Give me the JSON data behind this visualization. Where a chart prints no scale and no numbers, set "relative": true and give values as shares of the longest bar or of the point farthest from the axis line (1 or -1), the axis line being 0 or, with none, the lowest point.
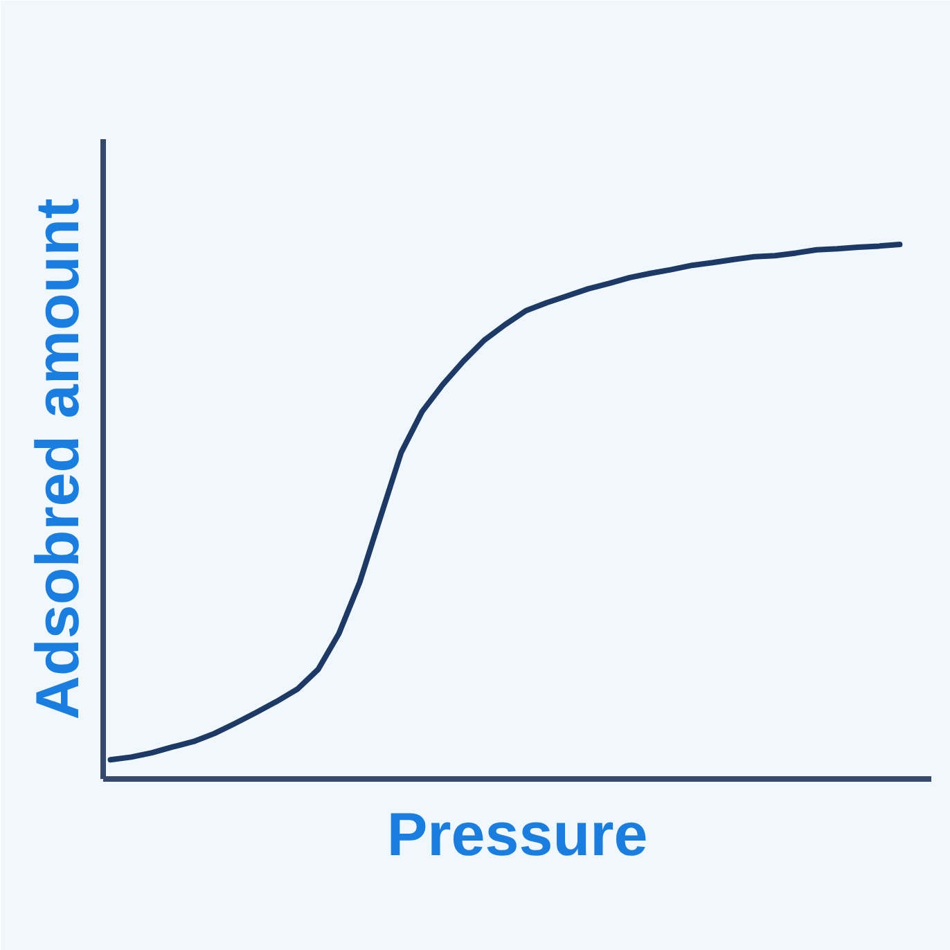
{
  "chart_data": {
    "type": "line",
    "xlabel": "Pressure",
    "ylabel": "Adsobred amount",
    "relative": true,
    "grid": false,
    "marker": "none",
    "line_style": "solid",
    "categories": [
      null,
      null,
      null,
      null,
      null,
      null,
      null,
      null,
      null,
      null,
      null,
      null,
      null,
      null,
      null,
      null,
      null,
      null,
      null,
      null,
      null,
      null,
      null,
      null,
      null,
      null,
      null,
      null,
      null,
      null,
      null,
      null,
      null,
      null,
      null,
      null,
      null,
      null,
      null
    ],
    "series": [
      {
        "color": "#1d3a66",
        "values": [
          0.036,
          0.041,
          0.049,
          0.06,
          0.07,
          0.085,
          0.104,
          0.124,
          0.145,
          0.168,
          0.205,
          0.272,
          0.368,
          0.49,
          0.611,
          0.687,
          0.738,
          0.782,
          0.821,
          0.85,
          0.876,
          0.891,
          0.904,
          0.917,
          0.927,
          0.938,
          0.946,
          0.953,
          0.961,
          0.966,
          0.972,
          0.977,
          0.979,
          0.984,
          0.99,
          0.992,
          0.995,
          0.997,
          1.0
        ]
      }
    ]
  }
}
